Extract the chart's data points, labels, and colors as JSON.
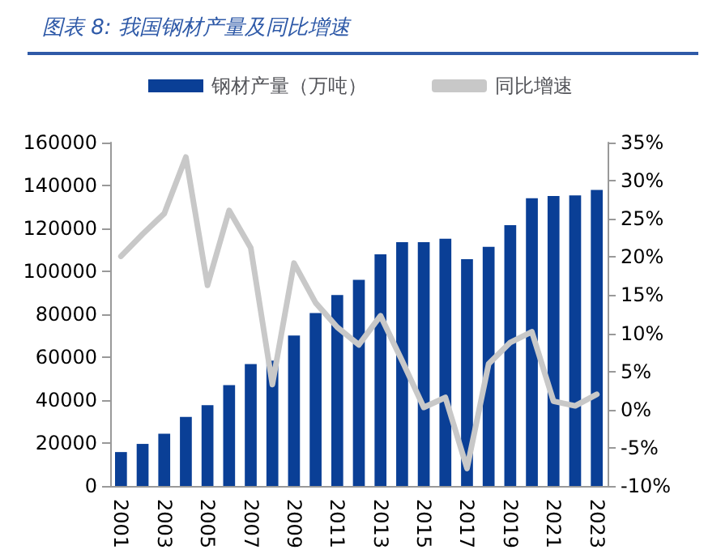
{
  "chart_data": {
    "type": "bar",
    "title": "图表 8:  我国钢材产量及同比增速",
    "categories": [
      "2001",
      null,
      "2003",
      null,
      "2005",
      null,
      "2007",
      null,
      "2009",
      null,
      "2011",
      null,
      "2013",
      null,
      "2015",
      null,
      "2017",
      null,
      "2019",
      null,
      "2021",
      null,
      "2023"
    ],
    "series": [
      {
        "name": "钢材产量（万吨）",
        "color": "#0a3f96",
        "values": [
          15800,
          19600,
          24300,
          32200,
          37600,
          47000,
          56800,
          58400,
          70100,
          80600,
          89000,
          96000,
          107900,
          113600,
          113600,
          115200,
          105700,
          111400,
          121500,
          134100,
          135100,
          135400,
          137900
        ]
      },
      {
        "name": "同比增速",
        "type": "line",
        "axis": "y2",
        "color": "#c8c8c8",
        "values": [
          20.1,
          23,
          25.7,
          33.1,
          16.3,
          26.1,
          21.2,
          3.3,
          19.2,
          14,
          10.8,
          8.5,
          12.3,
          6.4,
          0.3,
          1.6,
          -7.7,
          6.0,
          8.8,
          10.2,
          1.1,
          0.5,
          2.0
        ]
      }
    ],
    "ylim": [
      0,
      160000
    ],
    "yticks": [
      0,
      20000,
      40000,
      60000,
      80000,
      100000,
      120000,
      140000,
      160000
    ],
    "y2lim": [
      -10,
      35
    ],
    "y2ticks": [
      {
        "value": -10,
        "label": "-10%"
      },
      {
        "value": -5,
        "label": "-5%"
      },
      {
        "value": 0,
        "label": "0%"
      },
      {
        "value": 5,
        "label": "5%"
      },
      {
        "value": 10,
        "label": "10%"
      },
      {
        "value": 15,
        "label": "15%"
      },
      {
        "value": 20,
        "label": "20%"
      },
      {
        "value": 25,
        "label": "25%"
      },
      {
        "value": 30,
        "label": "30%"
      },
      {
        "value": 35,
        "label": "35%"
      }
    ],
    "legend": "top",
    "grid": false,
    "marker": "none",
    "line_style": "solid"
  }
}
